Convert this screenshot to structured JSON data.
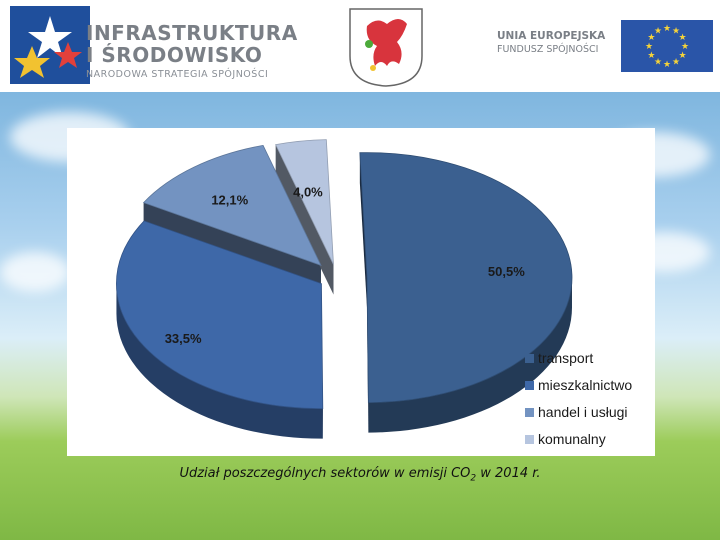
{
  "header": {
    "program_line1": "INFRASTRUKTURA",
    "program_line2": "I ŚRODOWISKO",
    "program_line3": "NARODOWA STRATEGIA SPÓJNOŚCI",
    "eu_line1": "UNIA EUROPEJSKA",
    "eu_line2": "FUNDUSZ SPÓJNOŚCI"
  },
  "caption": {
    "prefix": "Udział poszczególnych sektorów w emisji CO",
    "subscript": "2",
    "suffix": " w 2014 r."
  },
  "colors": {
    "transport": "#3b6090",
    "mieszkalnictwo": "#3e68a8",
    "handel": "#7393c1",
    "komunalny": "#b6c5df"
  },
  "chart_data": {
    "type": "pie",
    "style": "3d exploded",
    "title": "",
    "categories": [
      "transport",
      "mieszkalnictwo",
      "handel i usługi",
      "komunalny"
    ],
    "values": [
      50.5,
      33.5,
      12.1,
      4.0
    ],
    "labels": [
      "50,5%",
      "33,5%",
      "12,1%",
      "4,0%"
    ],
    "legend_position": "bottom-right"
  }
}
